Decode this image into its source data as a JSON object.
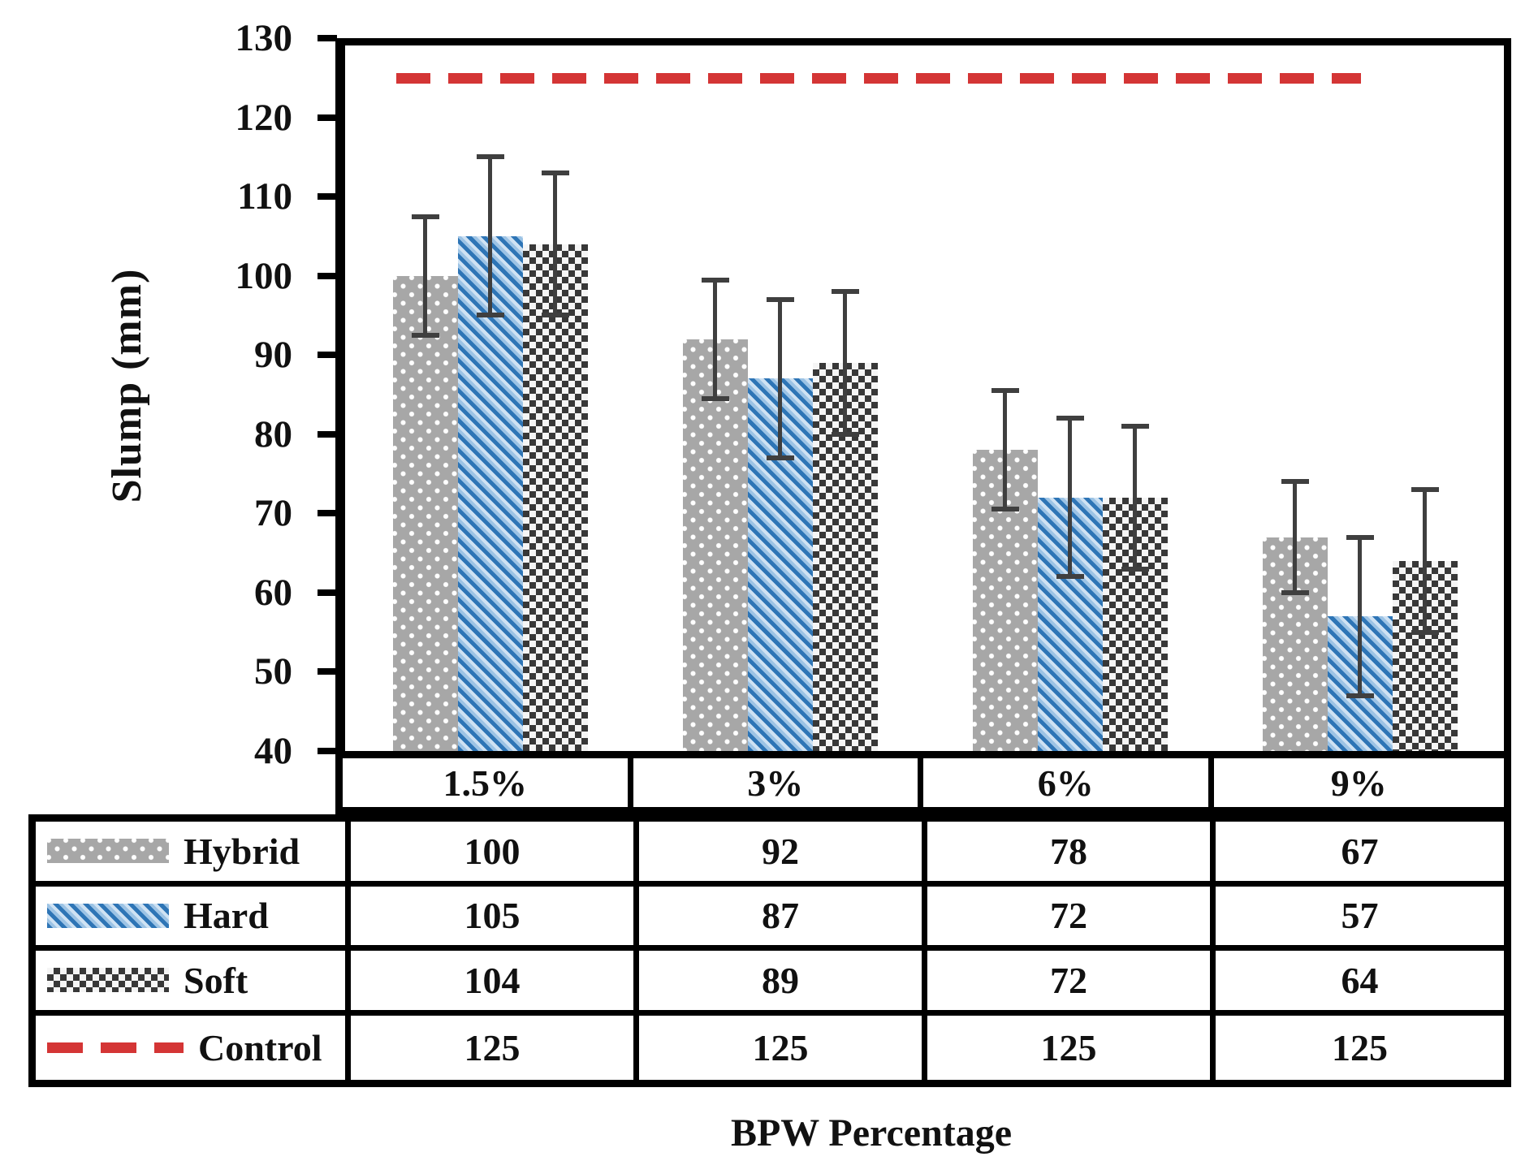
{
  "chart_data": {
    "type": "bar",
    "title": "",
    "xlabel": "BPW Percentage",
    "ylabel": "Slump (mm)",
    "ylim": [
      40,
      130
    ],
    "yticks": [
      130,
      120,
      110,
      100,
      90,
      80,
      70,
      60,
      50,
      40
    ],
    "categories": [
      "1.5%",
      "3%",
      "6%",
      "9%"
    ],
    "series": [
      {
        "name": "Hybrid",
        "pattern": "gray-dots",
        "values": [
          100,
          92,
          78,
          67
        ],
        "errors": [
          7.5,
          7.5,
          7.5,
          7
        ]
      },
      {
        "name": "Hard",
        "pattern": "blue-hatch",
        "values": [
          105,
          87,
          72,
          57
        ],
        "errors": [
          10,
          10,
          10,
          10
        ]
      },
      {
        "name": "Soft",
        "pattern": "dark-checker",
        "values": [
          104,
          89,
          72,
          64
        ],
        "errors": [
          9,
          9,
          9,
          9
        ]
      }
    ],
    "control": {
      "name": "Control",
      "pattern": "red-dashes",
      "line_value": 125,
      "values": [
        125,
        125,
        125,
        125
      ]
    },
    "legend_position": "table-left-column",
    "grid": false
  },
  "colors": {
    "hybrid_gray": "#a7a7a7",
    "hard_light_blue": "#9cc3e5",
    "hard_dark_blue": "#2e75b6",
    "soft_dark": "#383838",
    "control_red": "#d43535",
    "error_bar": "#3f3f3f",
    "axis_black": "#000000"
  }
}
